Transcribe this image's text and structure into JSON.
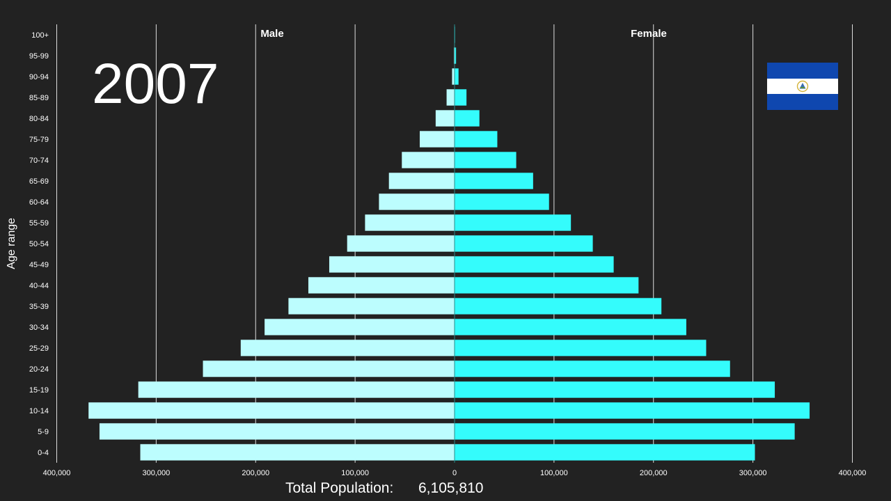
{
  "year": "2007",
  "total": {
    "label": "Total Population:",
    "value": "6,105,810"
  },
  "flag": {
    "name": "el-salvador-flag",
    "colors": {
      "blue": "#0f47af",
      "white": "#ffffff",
      "emblem": "#5a8f3c"
    }
  },
  "colors": {
    "male": "#bcfdfe",
    "female": "#34fcfc",
    "background": "#222222",
    "grid": "#ffffff"
  },
  "chart_data": {
    "type": "bar",
    "orientation": "horizontal-population-pyramid",
    "title": "",
    "ylabel": "Age range",
    "xlim": [
      -400000,
      400000
    ],
    "x_ticks": [
      -400000,
      -300000,
      -200000,
      -100000,
      0,
      100000,
      200000,
      300000,
      400000
    ],
    "x_tick_labels": [
      "400,000",
      "300,000",
      "200,000",
      "100,000",
      "0",
      "100,000",
      "200,000",
      "300,000",
      "400,000"
    ],
    "categories": [
      "100+",
      "95-99",
      "90-94",
      "85-89",
      "80-84",
      "75-79",
      "70-74",
      "65-69",
      "60-64",
      "55-59",
      "50-54",
      "45-49",
      "40-44",
      "35-39",
      "30-34",
      "25-29",
      "20-24",
      "15-19",
      "10-14",
      "5-9",
      "0-4"
    ],
    "series": [
      {
        "name": "Male",
        "values": [
          200,
          700,
          2500,
          8000,
          19000,
          35000,
          53000,
          66000,
          76000,
          90000,
          108000,
          126000,
          147000,
          167000,
          191000,
          215000,
          253000,
          318000,
          368000,
          357000,
          316000
        ]
      },
      {
        "name": "Female",
        "values": [
          500,
          1500,
          4000,
          12000,
          25000,
          43000,
          62000,
          79000,
          95000,
          117000,
          139000,
          160000,
          185000,
          208000,
          233000,
          253000,
          277000,
          322000,
          357000,
          342000,
          302000
        ]
      }
    ],
    "grid": true,
    "legend": "header-labels"
  }
}
